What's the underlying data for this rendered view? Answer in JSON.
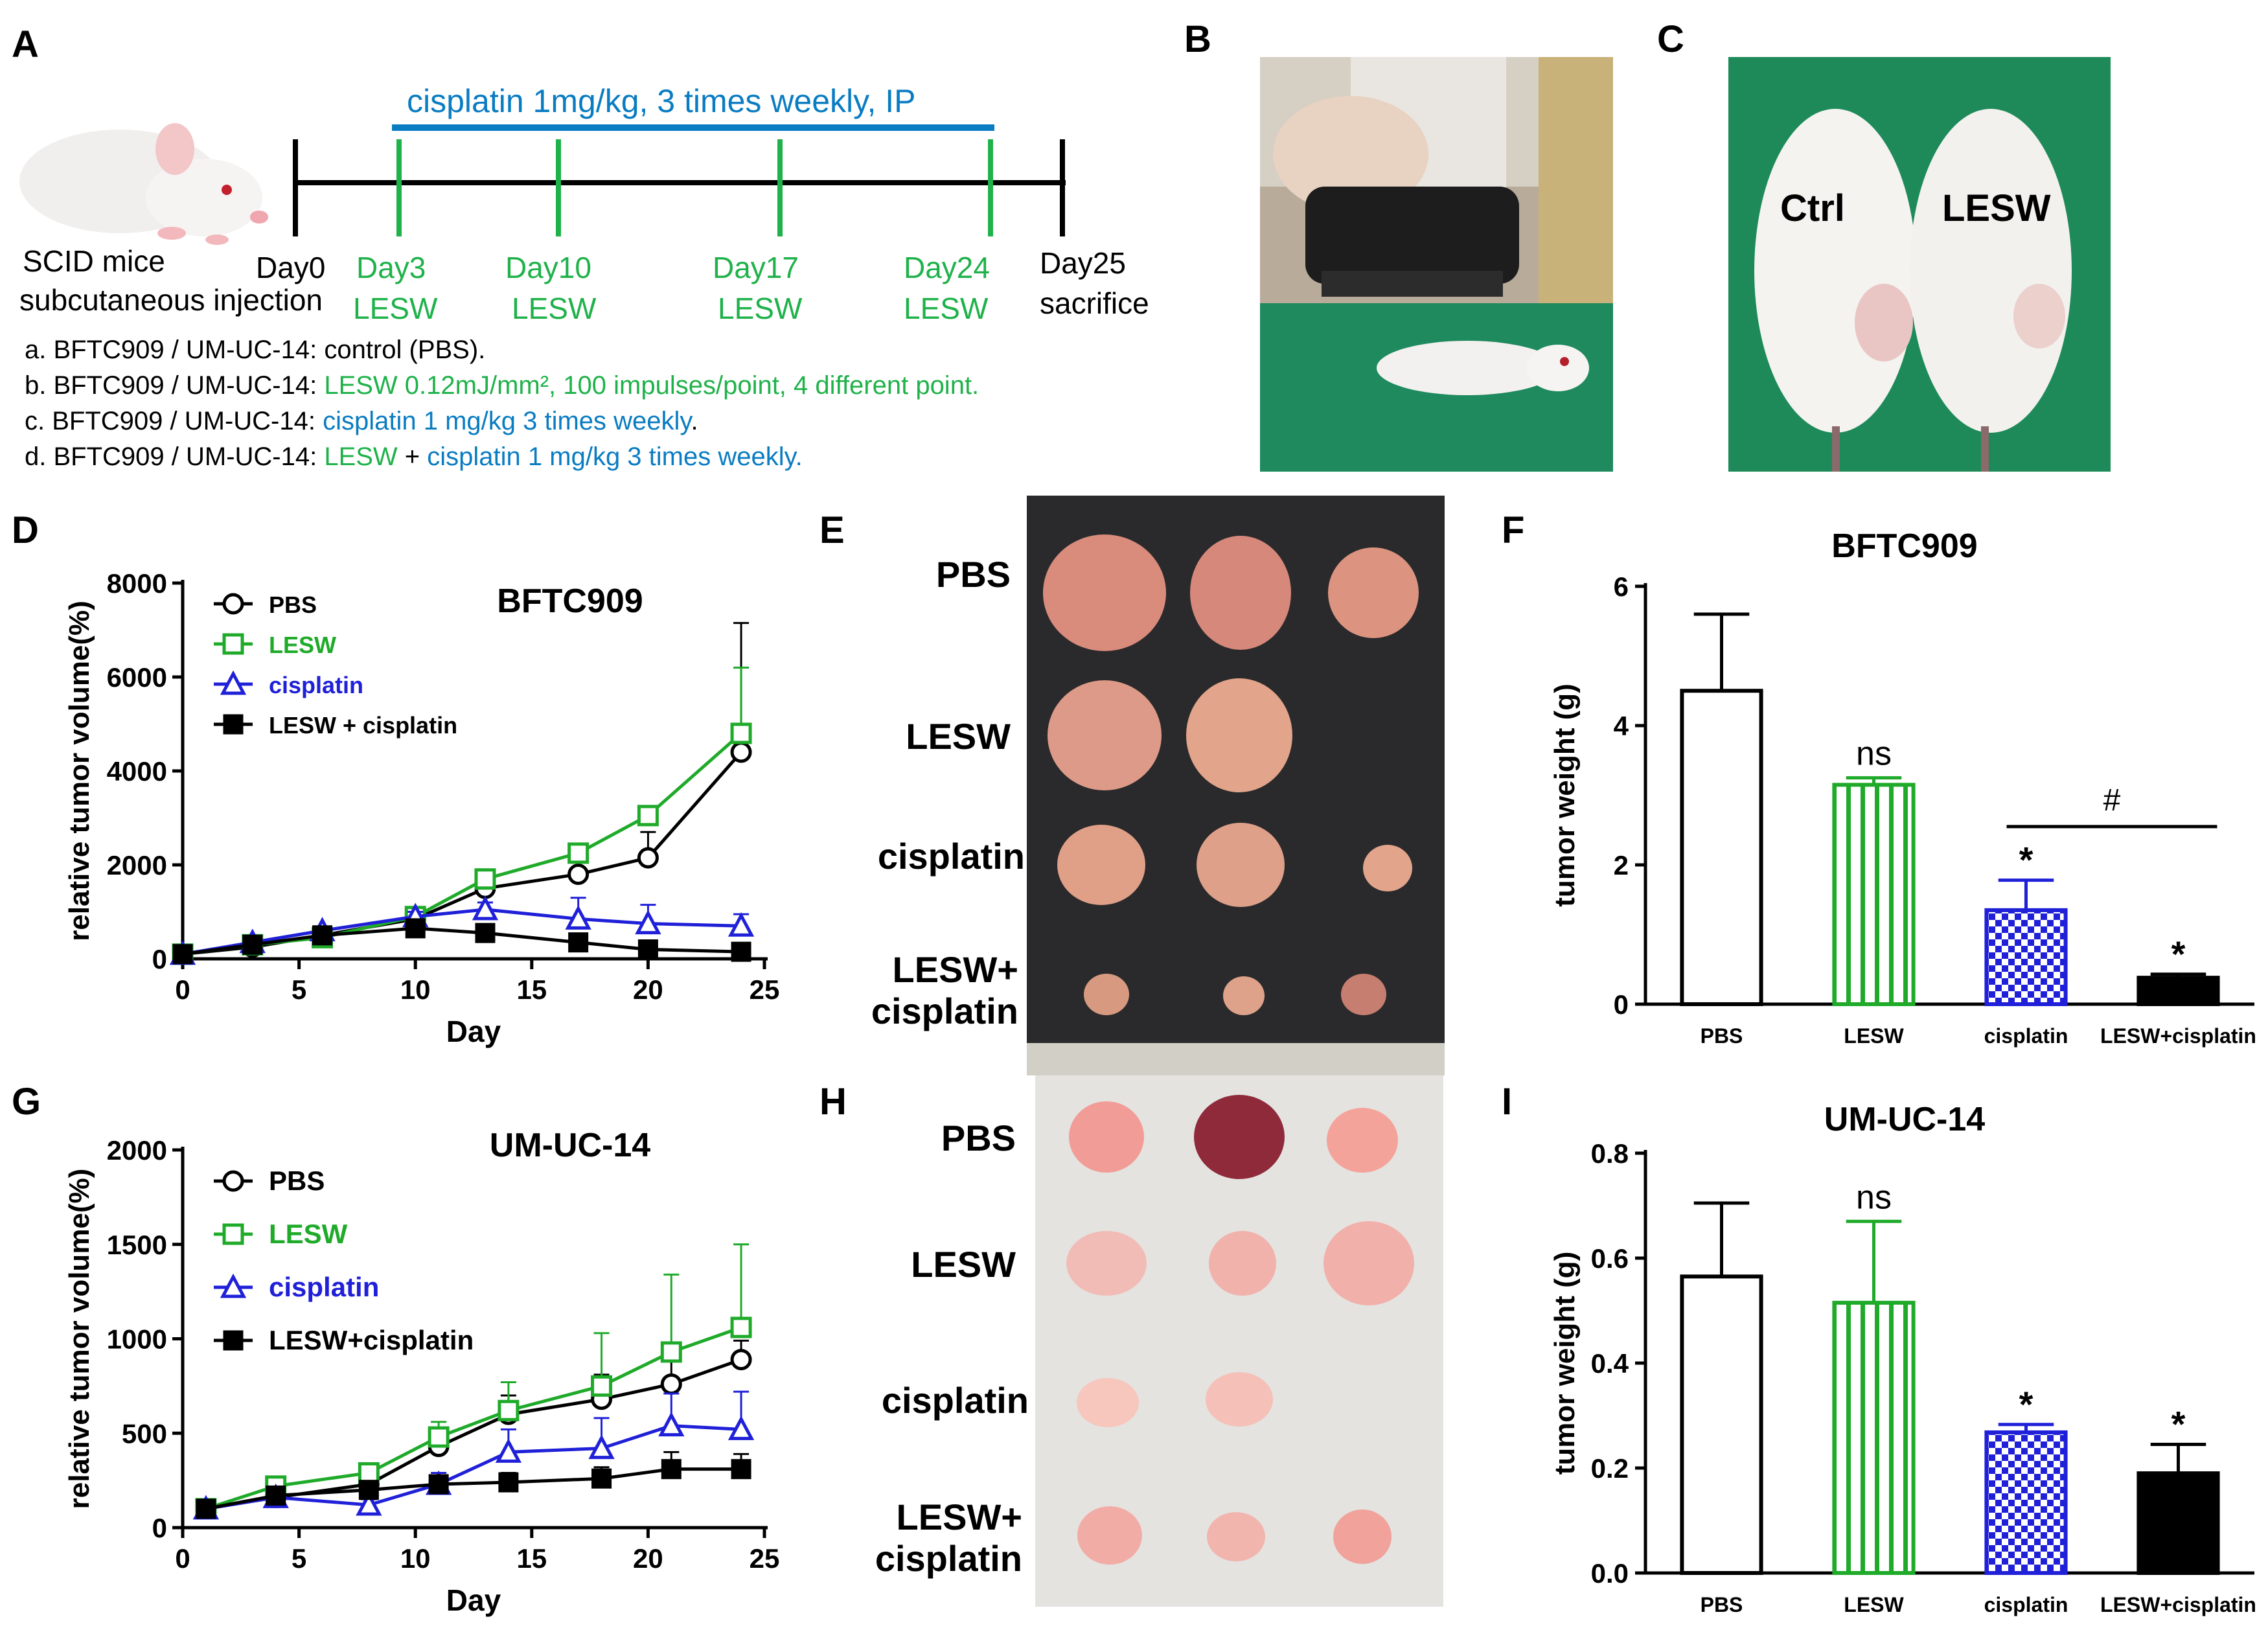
{
  "panels": {
    "A": "A",
    "B": "B",
    "C": "C",
    "D": "D",
    "E": "E",
    "F": "F",
    "G": "G",
    "H": "H",
    "I": "I"
  },
  "panelA": {
    "drug_bar": "cisplatin 1mg/kg, 3 times weekly, IP",
    "mouse_label_1": "SCID mice",
    "mouse_label_2": "subcutaneous injection",
    "timepoints": [
      {
        "day": "Day0",
        "sub": ""
      },
      {
        "day": "Day3",
        "sub": "LESW"
      },
      {
        "day": "Day10",
        "sub": "LESW"
      },
      {
        "day": "Day17",
        "sub": "LESW"
      },
      {
        "day": "Day24",
        "sub": "LESW"
      },
      {
        "day": "Day25",
        "sub": "sacrifice"
      }
    ],
    "groups": [
      {
        "prefix": "a. BFTC909 / UM-UC-14: ",
        "text": "control (PBS).",
        "extra": ""
      },
      {
        "prefix": "b. BFTC909 / UM-UC-14: ",
        "text": "LESW 0.12mJ/mm², 100 impulses/point, 4 different point.",
        "extra": ""
      },
      {
        "prefix": "c. BFTC909 / UM-UC-14: ",
        "text": "cisplatin 1 mg/kg 3 times weekly",
        "extra": "."
      },
      {
        "prefix": "d. BFTC909 / UM-UC-14: ",
        "text": "LESW",
        "plus": " + ",
        "text2": "cisplatin 1 mg/kg 3 times weekly."
      }
    ]
  },
  "panelC": {
    "ctrl": "Ctrl",
    "lesw": "LESW"
  },
  "panelE": {
    "rows": [
      "PBS",
      "LESW",
      "cisplatin",
      "LESW+",
      "cisplatin"
    ]
  },
  "panelH": {
    "rows": [
      "PBS",
      "LESW",
      "cisplatin",
      "LESW+",
      "cisplatin"
    ]
  },
  "colors": {
    "pbs": "#000000",
    "lesw": "#1faa2a",
    "cisplatin": "#1f20d8",
    "combo": "#000000",
    "blue_text": "#0a7cc2",
    "green_text": "#1fb24a"
  },
  "chart_data": [
    {
      "id": "D",
      "type": "line",
      "title": "BFTC909",
      "xlabel": "Day",
      "ylabel": "relative tumor volume(%)",
      "xlim": [
        0,
        25
      ],
      "ylim": [
        0,
        8000
      ],
      "xticks": [
        0,
        5,
        10,
        15,
        20,
        25
      ],
      "yticks": [
        0,
        2000,
        4000,
        6000,
        8000
      ],
      "series": [
        {
          "name": "PBS",
          "x": [
            0,
            3,
            6,
            10,
            13,
            17,
            20,
            24
          ],
          "y": [
            100,
            250,
            500,
            850,
            1500,
            1800,
            2150,
            4400
          ],
          "err": [
            0,
            50,
            80,
            120,
            200,
            250,
            550,
            2750
          ]
        },
        {
          "name": "LESW",
          "x": [
            0,
            3,
            6,
            10,
            13,
            17,
            20,
            24
          ],
          "y": [
            100,
            300,
            450,
            900,
            1700,
            2250,
            3050,
            4800
          ],
          "err": [
            0,
            60,
            80,
            100,
            150,
            150,
            150,
            1400
          ]
        },
        {
          "name": "cisplatin",
          "x": [
            0,
            3,
            6,
            10,
            13,
            17,
            20,
            24
          ],
          "y": [
            100,
            350,
            600,
            900,
            1050,
            850,
            750,
            700
          ],
          "err": [
            0,
            60,
            80,
            100,
            150,
            450,
            400,
            250
          ]
        },
        {
          "name": "LESW + cisplatin",
          "x": [
            0,
            3,
            6,
            10,
            13,
            17,
            20,
            24
          ],
          "y": [
            100,
            300,
            500,
            650,
            550,
            350,
            200,
            150
          ],
          "err": [
            0,
            50,
            60,
            80,
            80,
            80,
            60,
            40
          ]
        }
      ]
    },
    {
      "id": "F",
      "type": "bar",
      "title": "BFTC909",
      "xlabel": "",
      "ylabel": "tumor weight (g)",
      "ylim": [
        0,
        6
      ],
      "yticks": [
        0,
        2,
        4,
        6
      ],
      "categories": [
        "PBS",
        "LESW",
        "cisplatin",
        "LESW+cisplatin"
      ],
      "values": [
        4.5,
        3.15,
        1.35,
        0.38
      ],
      "err": [
        1.1,
        0.1,
        0.43,
        0.05
      ],
      "annotations": [
        "",
        "ns",
        "*",
        "*"
      ],
      "bracket": "#"
    },
    {
      "id": "G",
      "type": "line",
      "title": "UM-UC-14",
      "xlabel": "Day",
      "ylabel": "relative tumor volume(%)",
      "xlim": [
        0,
        25
      ],
      "ylim": [
        0,
        2000
      ],
      "xticks": [
        0,
        5,
        10,
        15,
        20,
        25
      ],
      "yticks": [
        0,
        500,
        1000,
        1500,
        2000
      ],
      "series": [
        {
          "name": "PBS",
          "x": [
            1,
            4,
            8,
            11,
            14,
            18,
            21,
            24
          ],
          "y": [
            100,
            160,
            230,
            430,
            600,
            680,
            760,
            890
          ],
          "err": [
            0,
            20,
            40,
            80,
            100,
            130,
            150,
            100
          ]
        },
        {
          "name": "LESW",
          "x": [
            1,
            4,
            8,
            11,
            14,
            18,
            21,
            24
          ],
          "y": [
            100,
            220,
            290,
            480,
            620,
            750,
            930,
            1060
          ],
          "err": [
            0,
            30,
            40,
            80,
            150,
            280,
            410,
            440
          ]
        },
        {
          "name": "cisplatin",
          "x": [
            1,
            4,
            8,
            11,
            14,
            18,
            21,
            24
          ],
          "y": [
            100,
            160,
            120,
            230,
            400,
            420,
            540,
            520
          ],
          "err": [
            0,
            20,
            30,
            60,
            120,
            160,
            170,
            200
          ]
        },
        {
          "name": "LESW+cisplatin",
          "x": [
            1,
            4,
            8,
            11,
            14,
            18,
            21,
            24
          ],
          "y": [
            100,
            170,
            200,
            230,
            240,
            260,
            310,
            310
          ],
          "err": [
            0,
            20,
            30,
            40,
            50,
            60,
            90,
            80
          ]
        }
      ]
    },
    {
      "id": "I",
      "type": "bar",
      "title": "UM-UC-14",
      "xlabel": "",
      "ylabel": "tumor weight (g)",
      "ylim": [
        0,
        0.8
      ],
      "yticks": [
        "0.0",
        "0.2",
        "0.4",
        "0.6",
        "0.8"
      ],
      "categories": [
        "PBS",
        "LESW",
        "cisplatin",
        "LESW+cisplatin"
      ],
      "values": [
        0.565,
        0.515,
        0.268,
        0.19
      ],
      "err": [
        0.14,
        0.155,
        0.015,
        0.055
      ],
      "annotations": [
        "",
        "ns",
        "*",
        "*"
      ]
    }
  ]
}
